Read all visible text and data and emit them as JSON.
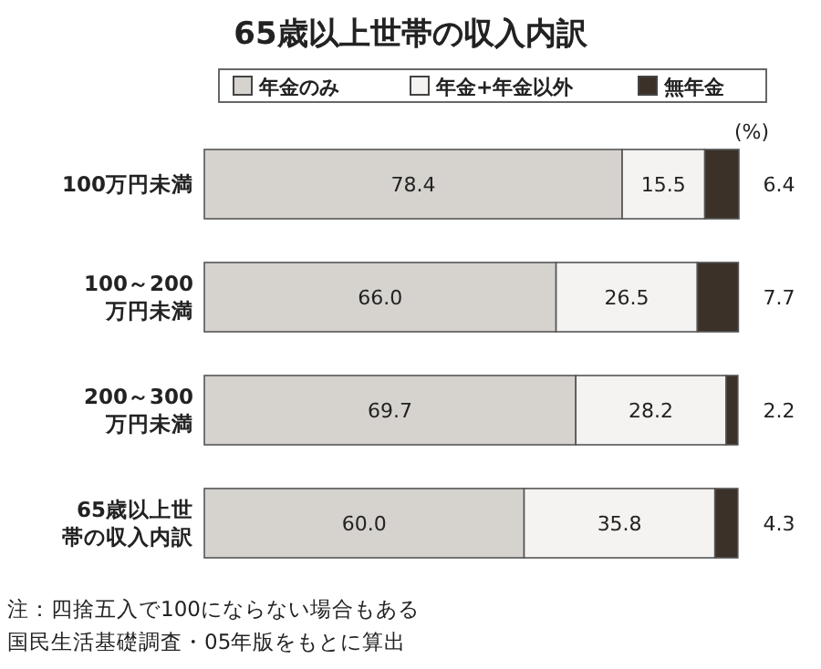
{
  "chart_data": {
    "type": "bar",
    "orientation": "horizontal",
    "stacked": true,
    "title": "65歳以上世帯の収入内訳",
    "legend": "top",
    "categories": [
      "100万円未満",
      "100～200\n万円未満",
      "200～300\n万円未満",
      "65歳以上世帯の収入内訳"
    ],
    "series": [
      {
        "name": "年金のみ",
        "color": "#d6d3cf",
        "values": [
          78.4,
          66.0,
          69.7,
          60.0
        ],
        "value_labels": [
          "78.4",
          "66.0",
          "69.7",
          "60.0"
        ]
      },
      {
        "name": "年金+年金以外",
        "color": "#f4f3f1",
        "values": [
          15.5,
          26.5,
          28.2,
          35.8
        ],
        "value_labels": [
          "15.5",
          "26.5",
          "28.2",
          "35.8"
        ]
      },
      {
        "name": "無年金",
        "color": "#3b3128",
        "values": [
          6.4,
          7.7,
          2.2,
          4.3
        ],
        "value_labels": [
          "6.4",
          "7.7",
          "2.2",
          "4.3"
        ]
      }
    ],
    "annotations": [
      "(%)",
      "注：四捨五入で100にならない場合もある",
      "国民生活基礎調査・05年版をもとに算出"
    ]
  }
}
